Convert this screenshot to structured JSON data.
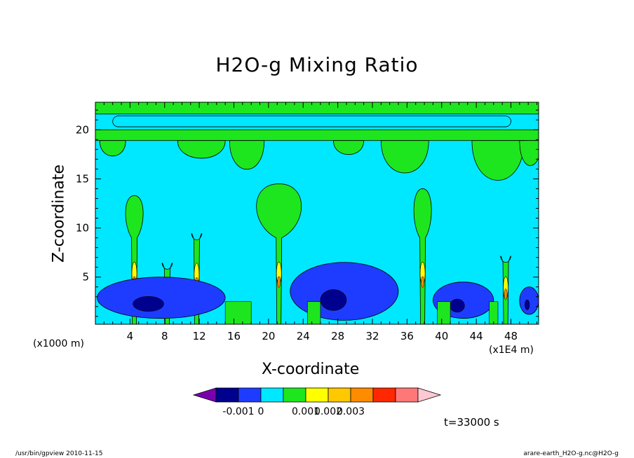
{
  "chart_data": {
    "type": "heatmap",
    "title": "H2O-g Mixing Ratio",
    "xlabel": "X-coordinate",
    "ylabel": "Z-coordinate",
    "x_unit_left": "(x1000 m)",
    "x_unit_right": "(x1E4 m)",
    "xlim": [
      0,
      51.2
    ],
    "ylim": [
      0.2,
      22.8
    ],
    "x_ticks": [
      4,
      8,
      12,
      16,
      20,
      24,
      28,
      32,
      36,
      40,
      44,
      48
    ],
    "y_ticks": [
      5,
      10,
      15,
      20
    ],
    "background_level_color": "#00e8ff",
    "colorbar": {
      "colors": [
        "#7b00ad",
        "#00008f",
        "#1e3cff",
        "#00e8ff",
        "#1ee61e",
        "#ffff00",
        "#ffc800",
        "#ff8c00",
        "#ff2800",
        "#ff7878",
        "#ffc8d2"
      ],
      "labels": [
        "-0.001",
        "0",
        "0.001",
        "0.002",
        "0.003"
      ],
      "label_positions": [
        2,
        3,
        5,
        6,
        7
      ]
    },
    "green_plumes": [
      {
        "x": 4.5,
        "top": 13.3
      },
      {
        "x": 8.3,
        "top": 5.8
      },
      {
        "x": 11.7,
        "top": 8.8
      },
      {
        "x": 21.2,
        "top": 14.5
      },
      {
        "x": 37.8,
        "top": 14.0
      },
      {
        "x": 47.4,
        "top": 6.5
      }
    ],
    "green_layers": [
      {
        "z0": 21.6,
        "z1": 22.8
      },
      {
        "z0": 18.9,
        "z1": 20.0
      }
    ],
    "blue_lobes": [
      {
        "x0": 0.2,
        "x1": 15.0,
        "z0": 0.8,
        "z1": 5.0
      },
      {
        "x0": 22.5,
        "x1": 35.0,
        "z0": 0.6,
        "z1": 6.5
      },
      {
        "x0": 39.0,
        "x1": 46.0,
        "z0": 0.8,
        "z1": 4.5
      },
      {
        "x0": 49.0,
        "x1": 51.2,
        "z0": 1.2,
        "z1": 4.0
      }
    ]
  },
  "time_label": "t=33000 s",
  "footer_left": "/usr/bin/gpview  2010-11-15",
  "footer_right": "arare-earth_H2O-g.nc@H2O-g"
}
